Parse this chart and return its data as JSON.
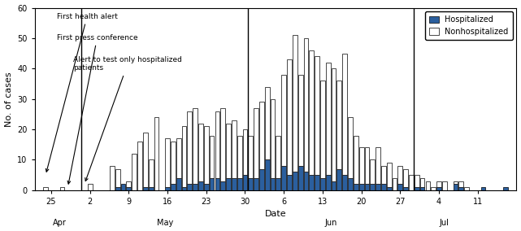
{
  "xlabel": "Date",
  "ylabel": "No. of cases",
  "ylim": [
    0,
    60
  ],
  "yticks": [
    0,
    10,
    20,
    30,
    40,
    50,
    60
  ],
  "bar_color_hosp": "#2B5F9E",
  "bar_color_nonhosp": "#FFFFFF",
  "bar_edgecolor": "#000000",
  "background_color": "#FFFFFF",
  "hosp": [
    0,
    0,
    0,
    0,
    0,
    0,
    0,
    0,
    0,
    0,
    0,
    0,
    0,
    0,
    1,
    2,
    1,
    0,
    0,
    1,
    1,
    0,
    0,
    1,
    2,
    4,
    1,
    2,
    2,
    3,
    2,
    4,
    4,
    3,
    4,
    4,
    4,
    5,
    4,
    4,
    7,
    10,
    4,
    4,
    8,
    5,
    6,
    8,
    6,
    5,
    5,
    4,
    5,
    3,
    7,
    5,
    4,
    2,
    2,
    2,
    2,
    2,
    2,
    1,
    0,
    2,
    1,
    0,
    1,
    1,
    0,
    0,
    1,
    0,
    0,
    2,
    1,
    0,
    0,
    0,
    1,
    0,
    0,
    0,
    1,
    0
  ],
  "nonhosp": [
    0,
    1,
    0,
    0,
    1,
    0,
    0,
    0,
    0,
    2,
    0,
    0,
    0,
    8,
    6,
    0,
    2,
    12,
    16,
    18,
    9,
    24,
    0,
    16,
    14,
    13,
    20,
    24,
    25,
    19,
    19,
    14,
    22,
    24,
    18,
    19,
    14,
    15,
    14,
    23,
    22,
    24,
    26,
    14,
    30,
    38,
    45,
    30,
    44,
    41,
    39,
    32,
    37,
    37,
    29,
    40,
    20,
    16,
    12,
    12,
    8,
    12,
    6,
    8,
    4,
    6,
    6,
    5,
    4,
    3,
    3,
    1,
    2,
    3,
    0,
    1,
    2,
    1,
    0,
    0,
    0,
    0,
    0,
    0,
    0,
    0
  ],
  "apr_may_div": 8,
  "may_jun_div": 38,
  "jun_jul_div": 68
}
